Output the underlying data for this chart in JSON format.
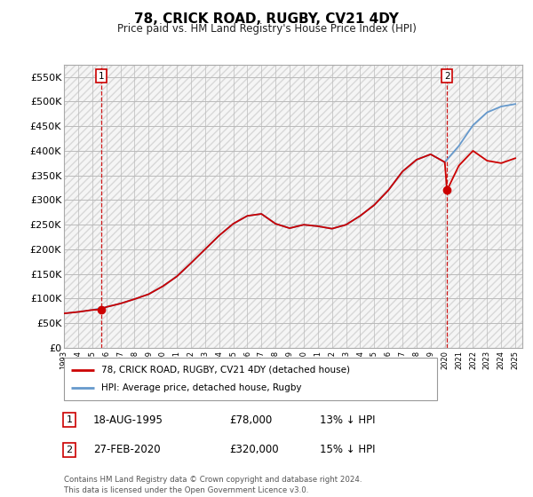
{
  "title": "78, CRICK ROAD, RUGBY, CV21 4DY",
  "subtitle": "Price paid vs. HM Land Registry's House Price Index (HPI)",
  "ylabel_ticks": [
    0,
    50000,
    100000,
    150000,
    200000,
    250000,
    300000,
    350000,
    400000,
    450000,
    500000,
    550000
  ],
  "ylim": [
    0,
    575000
  ],
  "xlim_start": 1993.0,
  "xlim_end": 2025.5,
  "point1": {
    "date_num": 1995.63,
    "price": 78000,
    "label": "1",
    "date_str": "18-AUG-1995",
    "price_str": "£78,000",
    "pct_str": "13% ↓ HPI"
  },
  "point2": {
    "date_num": 2020.16,
    "price": 320000,
    "label": "2",
    "date_str": "27-FEB-2020",
    "price_str": "£320,000",
    "pct_str": "15% ↓ HPI"
  },
  "legend_line1": "78, CRICK ROAD, RUGBY, CV21 4DY (detached house)",
  "legend_line2": "HPI: Average price, detached house, Rugby",
  "footer": "Contains HM Land Registry data © Crown copyright and database right 2024.\nThis data is licensed under the Open Government Licence v3.0.",
  "line_color_red": "#cc0000",
  "line_color_blue": "#6699cc",
  "background_color": "#ffffff",
  "grid_color": "#cccccc",
  "x_years": [
    1993,
    1994,
    1995,
    1996,
    1997,
    1998,
    1999,
    2000,
    2001,
    2002,
    2003,
    2004,
    2005,
    2006,
    2007,
    2008,
    2009,
    2010,
    2011,
    2012,
    2013,
    2014,
    2015,
    2016,
    2017,
    2018,
    2019,
    2020,
    2021,
    2022,
    2023,
    2024,
    2025
  ],
  "hpi_values": [
    70000,
    73000,
    77000,
    83000,
    90000,
    99000,
    109000,
    125000,
    145000,
    172000,
    200000,
    228000,
    252000,
    268000,
    272000,
    252000,
    243000,
    250000,
    247000,
    242000,
    250000,
    268000,
    290000,
    320000,
    358000,
    382000,
    393000,
    377000,
    410000,
    452000,
    478000,
    490000,
    495000
  ],
  "red_line_years": [
    1993,
    1994,
    1995,
    1995.63,
    1996,
    1997,
    1998,
    1999,
    2000,
    2001,
    2002,
    2003,
    2004,
    2005,
    2006,
    2007,
    2008,
    2009,
    2010,
    2011,
    2012,
    2013,
    2014,
    2015,
    2016,
    2017,
    2018,
    2019,
    2020,
    2020.16,
    2021,
    2022,
    2023,
    2024,
    2025
  ],
  "red_line_values": [
    70000,
    73000,
    77000,
    78000,
    83000,
    90000,
    99000,
    109000,
    125000,
    145000,
    172000,
    200000,
    228000,
    252000,
    268000,
    272000,
    252000,
    243000,
    250000,
    247000,
    242000,
    250000,
    268000,
    290000,
    320000,
    358000,
    382000,
    393000,
    377000,
    320000,
    370000,
    400000,
    380000,
    375000,
    385000
  ]
}
